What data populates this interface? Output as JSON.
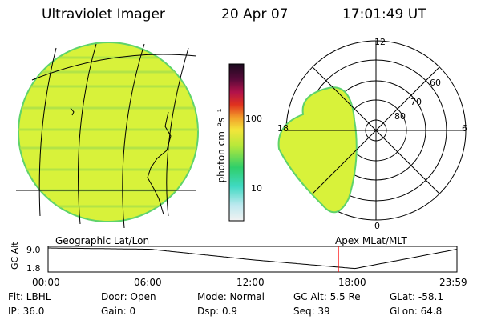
{
  "header": {
    "title": "Ultraviolet Imager",
    "date": "20 Apr 07",
    "time": "17:01:49 UT"
  },
  "colorbar": {
    "unit_label": "photon cm⁻²s⁻¹",
    "ticks": [
      "100",
      "10"
    ]
  },
  "polar": {
    "mlt_labels": [
      "12",
      "18",
      "6",
      "0"
    ],
    "lat_labels": [
      "60",
      "70",
      "80"
    ]
  },
  "panel_labels": {
    "left": "Geographic Lat/Lon",
    "right": "Apex MLat/MLT"
  },
  "orbit": {
    "ylabel": "GC Alt",
    "yticks": [
      "9.0",
      "1.8"
    ],
    "xticks": [
      "00:00",
      "06:00",
      "12:00",
      "18:00",
      "23:59"
    ]
  },
  "info": {
    "flt": "Flt: LBHL",
    "ip": "IP: 36.0",
    "door": "Door: Open",
    "gain": "Gain:  0",
    "mode": "Mode: Normal",
    "dsp": "Dsp:    0.9",
    "gc_alt": "GC Alt: 5.5 Re",
    "seq": "Seq: 39",
    "glat": "GLat:  -58.1",
    "glon": "GLon:  64.8"
  },
  "chart_data": {
    "type": "line",
    "xlabel": "",
    "ylabel": "GC Alt",
    "x": [
      "00:00",
      "06:00",
      "12:00",
      "18:00",
      "23:59"
    ],
    "ylim": [
      1.8,
      9.0
    ],
    "series": [
      {
        "values": [
          9.0,
          8.6,
          5.2,
          2.4,
          8.6
        ]
      }
    ],
    "current_time": "17:01:49 UT",
    "colors": {
      "marker": "#ff0000",
      "image_fill": "#d8f23a",
      "image_edge": "#5fd36b"
    }
  }
}
